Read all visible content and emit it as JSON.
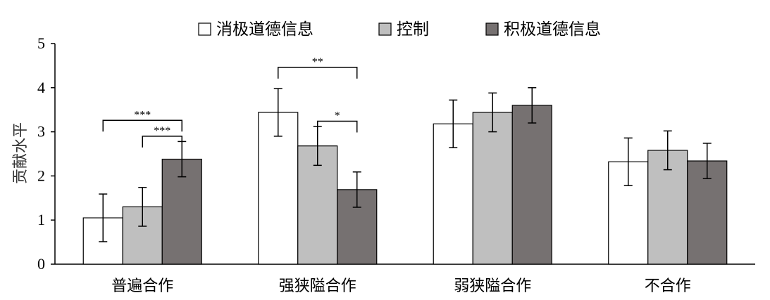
{
  "chart_data": {
    "type": "bar",
    "ylabel": "贡献水平",
    "ylim": [
      0,
      5
    ],
    "yticks": [
      "0",
      "1",
      "2",
      "3",
      "4",
      "5"
    ],
    "categories": [
      "普遍合作",
      "强狭隘合作",
      "弱狭隘合作",
      "不合作"
    ],
    "series": [
      {
        "name": "消极道德信息",
        "color": "#ffffff",
        "values": [
          1.05,
          3.44,
          3.18,
          2.32
        ],
        "errors": [
          0.54,
          0.54,
          0.54,
          0.54
        ]
      },
      {
        "name": "控制",
        "color": "#bfbfbf",
        "values": [
          1.3,
          2.68,
          3.44,
          2.58
        ],
        "errors": [
          0.44,
          0.44,
          0.44,
          0.44
        ]
      },
      {
        "name": "积极道德信息",
        "color": "#767171",
        "values": [
          2.38,
          1.69,
          3.6,
          2.34
        ],
        "errors": [
          0.4,
          0.4,
          0.4,
          0.4
        ]
      }
    ],
    "significance": [
      {
        "category": 0,
        "from_series": 0,
        "to_series": 2,
        "level": 2.25,
        "label": "***"
      },
      {
        "category": 0,
        "from_series": 1,
        "to_series": 2,
        "level": 1.58,
        "label": "***"
      },
      {
        "category": 1,
        "from_series": 0,
        "to_series": 2,
        "level": 2.05,
        "label": "**"
      },
      {
        "category": 1,
        "from_series": 1,
        "to_series": 2,
        "level": 1.5,
        "label": "*"
      }
    ],
    "legend_position": "top",
    "grid": false
  }
}
